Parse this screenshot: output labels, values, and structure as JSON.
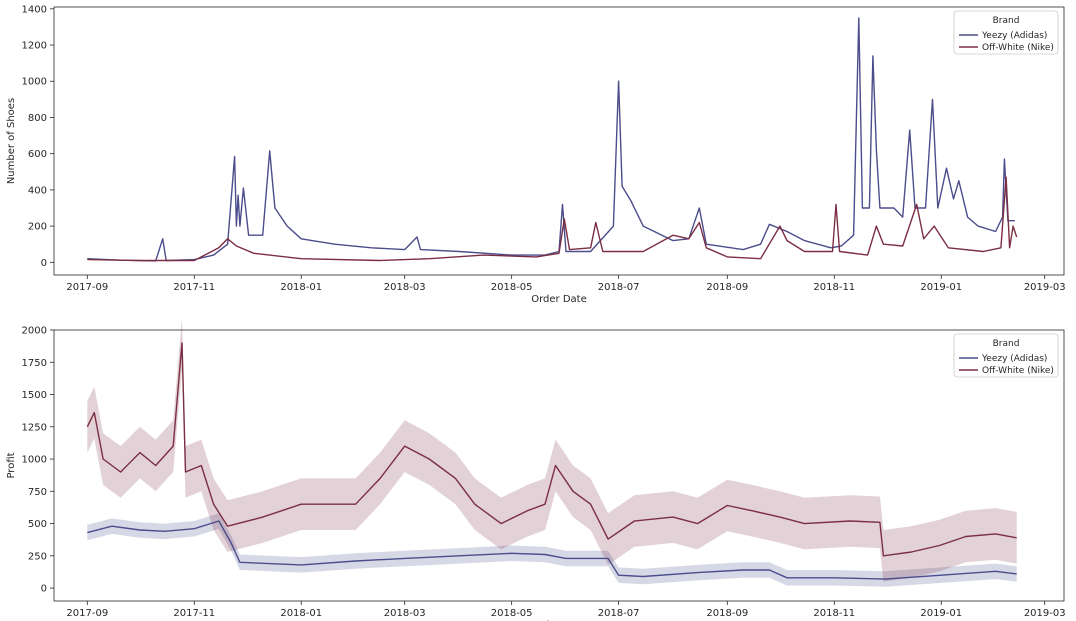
{
  "colors": {
    "adidas": "#4b4d8c",
    "nike": "#7b2e43",
    "axes": "#262626",
    "legend_border": "#cccccc"
  },
  "chart_data": [
    {
      "type": "line",
      "xlabel": "Order Date",
      "ylabel": "Number of Shoes",
      "xlim": [
        "2017-08-13",
        "2019-03-12"
      ],
      "ylim": [
        -70,
        1410
      ],
      "x_ticks": [
        {
          "date": "2017-09-01",
          "label": "2017-09"
        },
        {
          "date": "2017-11-01",
          "label": "2017-11"
        },
        {
          "date": "2018-01-01",
          "label": "2018-01"
        },
        {
          "date": "2018-03-01",
          "label": "2018-03"
        },
        {
          "date": "2018-05-01",
          "label": "2018-05"
        },
        {
          "date": "2018-07-01",
          "label": "2018-07"
        },
        {
          "date": "2018-09-01",
          "label": "2018-09"
        },
        {
          "date": "2018-11-01",
          "label": "2018-11"
        },
        {
          "date": "2019-01-01",
          "label": "2019-01"
        },
        {
          "date": "2019-03-01",
          "label": "2019-03"
        }
      ],
      "y_ticks": [
        0,
        200,
        400,
        600,
        800,
        1000,
        1200,
        1400
      ],
      "y_tick_labels": [
        "0",
        "200",
        "400",
        "600",
        "800",
        "1000",
        "1200",
        "1400"
      ],
      "legend": {
        "title": "Brand",
        "position": "top-right",
        "entries": [
          "Yeezy (Adidas)",
          "Off-White (Nike)"
        ]
      },
      "series": [
        {
          "name": "Yeezy (Adidas)",
          "color": "#4b4d8c",
          "points": [
            [
              "2017-09-01",
              20
            ],
            [
              "2017-09-20",
              12
            ],
            [
              "2017-10-10",
              8
            ],
            [
              "2017-10-14",
              130
            ],
            [
              "2017-10-16",
              10
            ],
            [
              "2017-11-01",
              15
            ],
            [
              "2017-11-12",
              40
            ],
            [
              "2017-11-20",
              100
            ],
            [
              "2017-11-24",
              585
            ],
            [
              "2017-11-25",
              200
            ],
            [
              "2017-11-26",
              370
            ],
            [
              "2017-11-27",
              200
            ],
            [
              "2017-11-29",
              410
            ],
            [
              "2017-12-02",
              150
            ],
            [
              "2017-12-10",
              150
            ],
            [
              "2017-12-14",
              615
            ],
            [
              "2017-12-17",
              300
            ],
            [
              "2017-12-24",
              200
            ],
            [
              "2018-01-01",
              130
            ],
            [
              "2018-01-20",
              100
            ],
            [
              "2018-02-10",
              80
            ],
            [
              "2018-03-01",
              70
            ],
            [
              "2018-03-08",
              140
            ],
            [
              "2018-03-10",
              70
            ],
            [
              "2018-04-01",
              60
            ],
            [
              "2018-05-01",
              40
            ],
            [
              "2018-05-20",
              40
            ],
            [
              "2018-05-28",
              60
            ],
            [
              "2018-05-30",
              320
            ],
            [
              "2018-06-01",
              60
            ],
            [
              "2018-06-15",
              60
            ],
            [
              "2018-06-28",
              200
            ],
            [
              "2018-07-01",
              1000
            ],
            [
              "2018-07-03",
              420
            ],
            [
              "2018-07-08",
              340
            ],
            [
              "2018-07-15",
              200
            ],
            [
              "2018-08-01",
              120
            ],
            [
              "2018-08-10",
              130
            ],
            [
              "2018-08-16",
              300
            ],
            [
              "2018-08-20",
              100
            ],
            [
              "2018-09-10",
              70
            ],
            [
              "2018-09-20",
              100
            ],
            [
              "2018-09-25",
              210
            ],
            [
              "2018-10-05",
              170
            ],
            [
              "2018-10-15",
              120
            ],
            [
              "2018-10-30",
              80
            ],
            [
              "2018-11-05",
              90
            ],
            [
              "2018-11-12",
              150
            ],
            [
              "2018-11-15",
              1350
            ],
            [
              "2018-11-17",
              300
            ],
            [
              "2018-11-21",
              300
            ],
            [
              "2018-11-23",
              1140
            ],
            [
              "2018-11-25",
              620
            ],
            [
              "2018-11-27",
              300
            ],
            [
              "2018-12-05",
              300
            ],
            [
              "2018-12-10",
              250
            ],
            [
              "2018-12-14",
              730
            ],
            [
              "2018-12-17",
              300
            ],
            [
              "2018-12-23",
              300
            ],
            [
              "2018-12-27",
              900
            ],
            [
              "2018-12-30",
              300
            ],
            [
              "2019-01-04",
              520
            ],
            [
              "2019-01-08",
              350
            ],
            [
              "2019-01-11",
              450
            ],
            [
              "2019-01-16",
              250
            ],
            [
              "2019-01-22",
              200
            ],
            [
              "2019-02-01",
              170
            ],
            [
              "2019-02-05",
              250
            ],
            [
              "2019-02-06",
              570
            ],
            [
              "2019-02-08",
              230
            ],
            [
              "2019-02-12",
              230
            ]
          ]
        },
        {
          "name": "Off-White (Nike)",
          "color": "#7b2e43",
          "points": [
            [
              "2017-09-01",
              15
            ],
            [
              "2017-10-01",
              10
            ],
            [
              "2017-11-01",
              10
            ],
            [
              "2017-11-15",
              80
            ],
            [
              "2017-11-20",
              130
            ],
            [
              "2017-11-25",
              90
            ],
            [
              "2017-12-05",
              50
            ],
            [
              "2018-01-01",
              20
            ],
            [
              "2018-02-15",
              10
            ],
            [
              "2018-03-15",
              20
            ],
            [
              "2018-04-15",
              40
            ],
            [
              "2018-05-15",
              30
            ],
            [
              "2018-05-28",
              50
            ],
            [
              "2018-05-31",
              240
            ],
            [
              "2018-06-03",
              70
            ],
            [
              "2018-06-15",
              80
            ],
            [
              "2018-06-18",
              220
            ],
            [
              "2018-06-22",
              60
            ],
            [
              "2018-07-15",
              60
            ],
            [
              "2018-08-01",
              150
            ],
            [
              "2018-08-10",
              130
            ],
            [
              "2018-08-16",
              220
            ],
            [
              "2018-08-20",
              80
            ],
            [
              "2018-09-01",
              30
            ],
            [
              "2018-09-20",
              20
            ],
            [
              "2018-10-01",
              200
            ],
            [
              "2018-10-05",
              120
            ],
            [
              "2018-10-15",
              60
            ],
            [
              "2018-10-31",
              60
            ],
            [
              "2018-11-02",
              320
            ],
            [
              "2018-11-04",
              60
            ],
            [
              "2018-11-20",
              40
            ],
            [
              "2018-11-25",
              200
            ],
            [
              "2018-11-29",
              100
            ],
            [
              "2018-12-10",
              90
            ],
            [
              "2018-12-18",
              320
            ],
            [
              "2018-12-22",
              130
            ],
            [
              "2018-12-28",
              200
            ],
            [
              "2019-01-05",
              80
            ],
            [
              "2019-01-25",
              60
            ],
            [
              "2019-02-04",
              80
            ],
            [
              "2019-02-07",
              470
            ],
            [
              "2019-02-09",
              80
            ],
            [
              "2019-02-11",
              200
            ],
            [
              "2019-02-13",
              140
            ]
          ]
        }
      ]
    },
    {
      "type": "line",
      "xlabel": "Order Date",
      "ylabel": "Profit",
      "xlim": [
        "2017-08-13",
        "2019-03-12"
      ],
      "ylim": [
        -100,
        2000
      ],
      "x_ticks": [
        {
          "date": "2017-09-01",
          "label": "2017-09"
        },
        {
          "date": "2017-11-01",
          "label": "2017-11"
        },
        {
          "date": "2018-01-01",
          "label": "2018-01"
        },
        {
          "date": "2018-03-01",
          "label": "2018-03"
        },
        {
          "date": "2018-05-01",
          "label": "2018-05"
        },
        {
          "date": "2018-07-01",
          "label": "2018-07"
        },
        {
          "date": "2018-09-01",
          "label": "2018-09"
        },
        {
          "date": "2018-11-01",
          "label": "2018-11"
        },
        {
          "date": "2019-01-01",
          "label": "2019-01"
        },
        {
          "date": "2019-03-01",
          "label": "2019-03"
        }
      ],
      "y_ticks": [
        0,
        250,
        500,
        750,
        1000,
        1250,
        1500,
        1750,
        2000
      ],
      "y_tick_labels": [
        "0",
        "250",
        "500",
        "750",
        "1000",
        "1250",
        "1500",
        "1750",
        "2000"
      ],
      "legend": {
        "title": "Brand",
        "position": "top-right",
        "entries": [
          "Yeezy (Adidas)",
          "Off-White (Nike)"
        ]
      },
      "series": [
        {
          "name": "Yeezy (Adidas)",
          "color": "#4b4d8c",
          "band": 60,
          "points": [
            [
              "2017-09-01",
              430
            ],
            [
              "2017-09-15",
              480
            ],
            [
              "2017-10-01",
              450
            ],
            [
              "2017-10-15",
              440
            ],
            [
              "2017-11-01",
              460
            ],
            [
              "2017-11-15",
              520
            ],
            [
              "2017-11-22",
              350
            ],
            [
              "2017-11-27",
              200
            ],
            [
              "2018-01-01",
              180
            ],
            [
              "2018-02-01",
              210
            ],
            [
              "2018-03-01",
              230
            ],
            [
              "2018-04-01",
              250
            ],
            [
              "2018-05-01",
              270
            ],
            [
              "2018-05-20",
              260
            ],
            [
              "2018-06-01",
              230
            ],
            [
              "2018-06-25",
              230
            ],
            [
              "2018-07-01",
              100
            ],
            [
              "2018-07-15",
              90
            ],
            [
              "2018-08-15",
              120
            ],
            [
              "2018-09-10",
              140
            ],
            [
              "2018-09-25",
              140
            ],
            [
              "2018-10-05",
              80
            ],
            [
              "2018-11-01",
              80
            ],
            [
              "2018-11-30",
              70
            ],
            [
              "2019-01-01",
              100
            ],
            [
              "2019-02-01",
              130
            ],
            [
              "2019-02-13",
              110
            ]
          ]
        },
        {
          "name": "Off-White (Nike)",
          "color": "#7b2e43",
          "band": 200,
          "points": [
            [
              "2017-09-01",
              1250
            ],
            [
              "2017-09-05",
              1360
            ],
            [
              "2017-09-10",
              1000
            ],
            [
              "2017-09-20",
              900
            ],
            [
              "2017-10-01",
              1050
            ],
            [
              "2017-10-10",
              950
            ],
            [
              "2017-10-20",
              1100
            ],
            [
              "2017-10-25",
              1900
            ],
            [
              "2017-10-27",
              900
            ],
            [
              "2017-11-05",
              950
            ],
            [
              "2017-11-12",
              650
            ],
            [
              "2017-11-20",
              480
            ],
            [
              "2017-12-10",
              550
            ],
            [
              "2018-01-01",
              650
            ],
            [
              "2018-02-01",
              650
            ],
            [
              "2018-02-15",
              850
            ],
            [
              "2018-03-01",
              1100
            ],
            [
              "2018-03-15",
              1000
            ],
            [
              "2018-03-30",
              850
            ],
            [
              "2018-04-10",
              650
            ],
            [
              "2018-04-25",
              500
            ],
            [
              "2018-05-10",
              600
            ],
            [
              "2018-05-20",
              650
            ],
            [
              "2018-05-26",
              950
            ],
            [
              "2018-06-05",
              750
            ],
            [
              "2018-06-15",
              650
            ],
            [
              "2018-06-25",
              380
            ],
            [
              "2018-07-10",
              520
            ],
            [
              "2018-08-01",
              550
            ],
            [
              "2018-08-15",
              500
            ],
            [
              "2018-09-01",
              640
            ],
            [
              "2018-09-15",
              600
            ],
            [
              "2018-10-01",
              550
            ],
            [
              "2018-10-15",
              500
            ],
            [
              "2018-11-10",
              520
            ],
            [
              "2018-11-27",
              510
            ],
            [
              "2018-11-29",
              250
            ],
            [
              "2018-12-15",
              280
            ],
            [
              "2018-12-31",
              330
            ],
            [
              "2019-01-15",
              400
            ],
            [
              "2019-02-01",
              420
            ],
            [
              "2019-02-13",
              390
            ]
          ]
        }
      ]
    }
  ]
}
